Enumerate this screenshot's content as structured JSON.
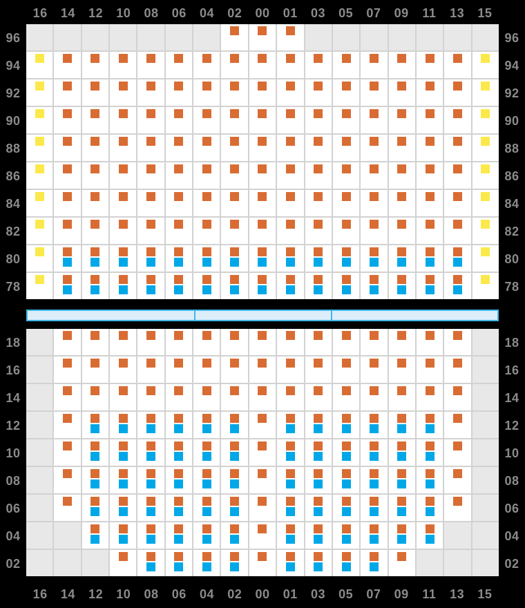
{
  "columns": [
    "16",
    "14",
    "12",
    "10",
    "08",
    "06",
    "04",
    "02",
    "00",
    "01",
    "03",
    "05",
    "07",
    "09",
    "11",
    "13",
    "15"
  ],
  "colors": {
    "background": "#000000",
    "cell_available": "#ffffff",
    "cell_unavailable": "#e9e8e9",
    "grid_line": "#d2d2d2",
    "label_text": "#8b8b8b",
    "marker_orange": "#d96c33",
    "marker_blue": "#00a8e8",
    "marker_yellow": "#fbe94b",
    "walkway_fill": "#ddeefb",
    "walkway_border": "#41b6e8"
  },
  "cell_codes": {
    "U": "unavailable-gray",
    "O": "orange-marker",
    "OB": "orange-and-blue-markers",
    "Y": "yellow-marker"
  },
  "upper_section": {
    "rows": [
      {
        "label": "96",
        "cells": [
          "U",
          "U",
          "U",
          "U",
          "U",
          "U",
          "U",
          "O",
          "O",
          "O",
          "U",
          "U",
          "U",
          "U",
          "U",
          "U",
          "U"
        ]
      },
      {
        "label": "94",
        "cells": [
          "Y",
          "O",
          "O",
          "O",
          "O",
          "O",
          "O",
          "O",
          "O",
          "O",
          "O",
          "O",
          "O",
          "O",
          "O",
          "O",
          "Y"
        ]
      },
      {
        "label": "92",
        "cells": [
          "Y",
          "O",
          "O",
          "O",
          "O",
          "O",
          "O",
          "O",
          "O",
          "O",
          "O",
          "O",
          "O",
          "O",
          "O",
          "O",
          "Y"
        ]
      },
      {
        "label": "90",
        "cells": [
          "Y",
          "O",
          "O",
          "O",
          "O",
          "O",
          "O",
          "O",
          "O",
          "O",
          "O",
          "O",
          "O",
          "O",
          "O",
          "O",
          "Y"
        ]
      },
      {
        "label": "88",
        "cells": [
          "Y",
          "O",
          "O",
          "O",
          "O",
          "O",
          "O",
          "O",
          "O",
          "O",
          "O",
          "O",
          "O",
          "O",
          "O",
          "O",
          "Y"
        ]
      },
      {
        "label": "86",
        "cells": [
          "Y",
          "O",
          "O",
          "O",
          "O",
          "O",
          "O",
          "O",
          "O",
          "O",
          "O",
          "O",
          "O",
          "O",
          "O",
          "O",
          "Y"
        ]
      },
      {
        "label": "84",
        "cells": [
          "Y",
          "O",
          "O",
          "O",
          "O",
          "O",
          "O",
          "O",
          "O",
          "O",
          "O",
          "O",
          "O",
          "O",
          "O",
          "O",
          "Y"
        ]
      },
      {
        "label": "82",
        "cells": [
          "Y",
          "O",
          "O",
          "O",
          "O",
          "O",
          "O",
          "O",
          "O",
          "O",
          "O",
          "O",
          "O",
          "O",
          "O",
          "O",
          "Y"
        ]
      },
      {
        "label": "80",
        "cells": [
          "Y",
          "OB",
          "OB",
          "OB",
          "OB",
          "OB",
          "OB",
          "OB",
          "OB",
          "OB",
          "OB",
          "OB",
          "OB",
          "OB",
          "OB",
          "OB",
          "Y"
        ]
      },
      {
        "label": "78",
        "cells": [
          "Y",
          "OB",
          "OB",
          "OB",
          "OB",
          "OB",
          "OB",
          "OB",
          "OB",
          "OB",
          "OB",
          "OB",
          "OB",
          "OB",
          "OB",
          "OB",
          "Y"
        ]
      }
    ]
  },
  "walkway": {
    "segments": 3
  },
  "lower_section": {
    "rows": [
      {
        "label": "18",
        "cells": [
          "U",
          "O",
          "O",
          "O",
          "O",
          "O",
          "O",
          "O",
          "O",
          "O",
          "O",
          "O",
          "O",
          "O",
          "O",
          "O",
          "U"
        ]
      },
      {
        "label": "16",
        "cells": [
          "U",
          "O",
          "O",
          "O",
          "O",
          "O",
          "O",
          "O",
          "O",
          "O",
          "O",
          "O",
          "O",
          "O",
          "O",
          "O",
          "U"
        ]
      },
      {
        "label": "14",
        "cells": [
          "U",
          "O",
          "O",
          "O",
          "O",
          "O",
          "O",
          "O",
          "O",
          "O",
          "O",
          "O",
          "O",
          "O",
          "O",
          "O",
          "U"
        ]
      },
      {
        "label": "12",
        "cells": [
          "U",
          "O",
          "OB",
          "OB",
          "OB",
          "OB",
          "OB",
          "OB",
          "O",
          "OB",
          "OB",
          "OB",
          "OB",
          "OB",
          "OB",
          "O",
          "U"
        ]
      },
      {
        "label": "10",
        "cells": [
          "U",
          "O",
          "OB",
          "OB",
          "OB",
          "OB",
          "OB",
          "OB",
          "O",
          "OB",
          "OB",
          "OB",
          "OB",
          "OB",
          "OB",
          "O",
          "U"
        ]
      },
      {
        "label": "08",
        "cells": [
          "U",
          "O",
          "OB",
          "OB",
          "OB",
          "OB",
          "OB",
          "OB",
          "O",
          "OB",
          "OB",
          "OB",
          "OB",
          "OB",
          "OB",
          "O",
          "U"
        ]
      },
      {
        "label": "06",
        "cells": [
          "U",
          "O",
          "OB",
          "OB",
          "OB",
          "OB",
          "OB",
          "OB",
          "O",
          "OB",
          "OB",
          "OB",
          "OB",
          "OB",
          "OB",
          "O",
          "U"
        ]
      },
      {
        "label": "04",
        "cells": [
          "U",
          "U",
          "OB",
          "OB",
          "OB",
          "OB",
          "OB",
          "OB",
          "O",
          "OB",
          "OB",
          "OB",
          "OB",
          "OB",
          "OB",
          "U",
          "U"
        ]
      },
      {
        "label": "02",
        "cells": [
          "U",
          "U",
          "U",
          "O",
          "OB",
          "OB",
          "OB",
          "OB",
          "O",
          "OB",
          "OB",
          "OB",
          "OB",
          "O",
          "U",
          "U",
          "U"
        ]
      }
    ]
  }
}
